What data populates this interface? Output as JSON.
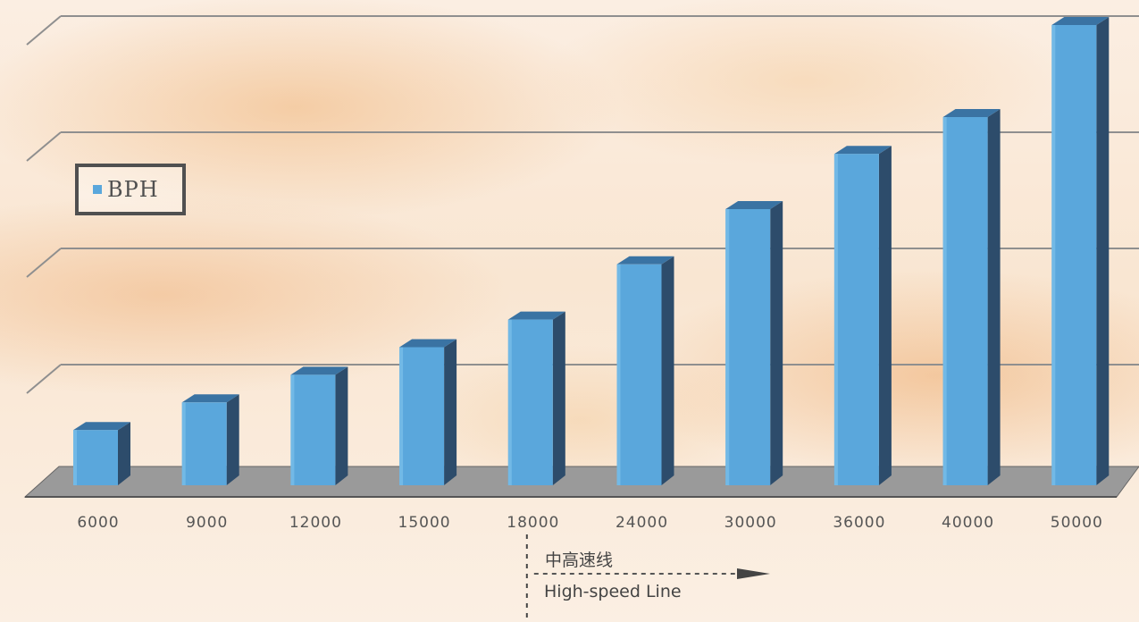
{
  "chart_data": {
    "type": "bar",
    "categories": [
      "6000",
      "9000",
      "12000",
      "15000",
      "18000",
      "24000",
      "30000",
      "36000",
      "40000",
      "50000"
    ],
    "series": [
      {
        "name": "BPH",
        "values": [
          6000,
          9000,
          12000,
          15000,
          18000,
          24000,
          30000,
          36000,
          40000,
          50000
        ]
      }
    ],
    "title": "",
    "xlabel": "",
    "ylabel": "",
    "ylim": [
      0,
      50000
    ],
    "grid": true,
    "legend": {
      "placement": "left",
      "entries": [
        "BPH"
      ]
    },
    "annotations": [
      {
        "text": "中高速线",
        "at_category": "18000"
      },
      {
        "text": "High-speed Line",
        "at_category": "18000"
      }
    ],
    "colors": {
      "bar_front": "#5aa7dc",
      "bar_side": "#2d4c6b",
      "bar_top": "#3a73a3",
      "floor": "#9a9a9a",
      "grid": "#8f8f8f"
    }
  }
}
